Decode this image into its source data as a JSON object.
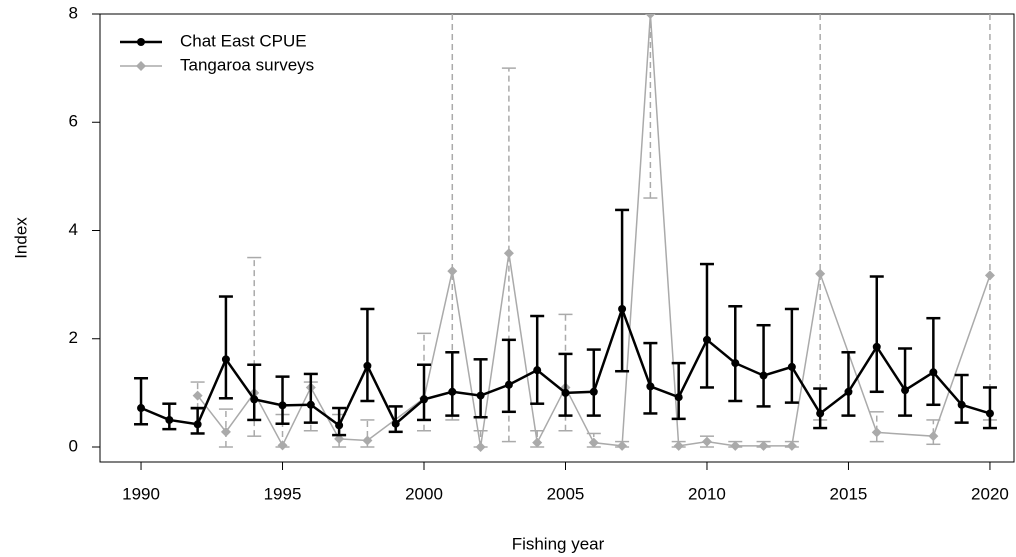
{
  "chart_data": {
    "type": "line",
    "x_label": "Fishing year",
    "y_label": "Index",
    "xlim": [
      1988.55,
      2020.85
    ],
    "ylim": [
      0,
      8
    ],
    "xticks": [
      1990,
      1995,
      2000,
      2005,
      2010,
      2015,
      2020
    ],
    "yticks": [
      0,
      2,
      4,
      6,
      8
    ],
    "legend": "top-left",
    "series": [
      {
        "name": "Chat East CPUE",
        "color": "#000000",
        "line": "solid",
        "x": [
          1990,
          1991,
          1992,
          1993,
          1994,
          1995,
          1996,
          1997,
          1998,
          1999,
          2000,
          2001,
          2002,
          2003,
          2004,
          2005,
          2006,
          2007,
          2008,
          2009,
          2010,
          2011,
          2012,
          2013,
          2014,
          2015,
          2016,
          2017,
          2018,
          2019,
          2020
        ],
        "values": [
          0.72,
          0.5,
          0.42,
          1.62,
          0.88,
          0.77,
          0.78,
          0.4,
          1.5,
          0.43,
          0.88,
          1.02,
          0.95,
          1.15,
          1.42,
          1.0,
          1.02,
          2.55,
          1.12,
          0.92,
          1.98,
          1.55,
          1.32,
          1.48,
          0.62,
          1.02,
          1.85,
          1.05,
          1.38,
          0.78,
          0.62
        ],
        "lower": [
          0.42,
          0.33,
          0.25,
          0.9,
          0.5,
          0.43,
          0.45,
          0.22,
          0.85,
          0.28,
          0.5,
          0.58,
          0.55,
          0.65,
          0.8,
          0.58,
          0.58,
          1.4,
          0.62,
          0.52,
          1.1,
          0.85,
          0.75,
          0.82,
          0.35,
          0.58,
          1.02,
          0.58,
          0.78,
          0.45,
          0.35
        ],
        "upper": [
          1.27,
          0.8,
          0.72,
          2.78,
          1.52,
          1.3,
          1.35,
          0.72,
          2.55,
          0.75,
          1.52,
          1.75,
          1.62,
          1.98,
          2.42,
          1.72,
          1.8,
          4.38,
          1.92,
          1.55,
          3.38,
          2.6,
          2.25,
          2.55,
          1.08,
          1.75,
          3.15,
          1.82,
          2.38,
          1.33,
          1.1
        ]
      },
      {
        "name": "Tangaroa surveys",
        "color": "#aaaaaa",
        "line": "dashed",
        "x": [
          1992,
          1993,
          1994,
          1995,
          1996,
          1997,
          1998,
          2000,
          2001,
          2002,
          2003,
          2004,
          2005,
          2006,
          2007,
          2008,
          2009,
          2010,
          2011,
          2012,
          2013,
          2014,
          2016,
          2018,
          2020
        ],
        "values": [
          0.95,
          0.28,
          1.0,
          0.03,
          1.1,
          0.15,
          0.12,
          0.9,
          3.25,
          0.0,
          3.58,
          0.08,
          1.1,
          0.08,
          0.02,
          8.0,
          0.02,
          0.1,
          0.02,
          0.02,
          0.02,
          3.2,
          0.27,
          0.2,
          3.17
        ],
        "lower": [
          0.7,
          0.0,
          0.2,
          0.0,
          0.3,
          0.0,
          0.0,
          0.3,
          0.5,
          0.0,
          0.1,
          0.0,
          0.3,
          0.0,
          0.0,
          4.6,
          0.0,
          0.0,
          0.0,
          0.0,
          0.0,
          0.5,
          0.1,
          0.05,
          0.5
        ],
        "upper": [
          1.2,
          0.7,
          3.5,
          0.6,
          1.2,
          0.6,
          0.5,
          2.1,
          8.5,
          0.3,
          7.0,
          0.3,
          2.45,
          0.25,
          0.1,
          8.5,
          0.1,
          0.2,
          0.1,
          0.1,
          0.1,
          8.5,
          0.65,
          0.5,
          8.5
        ]
      }
    ]
  }
}
